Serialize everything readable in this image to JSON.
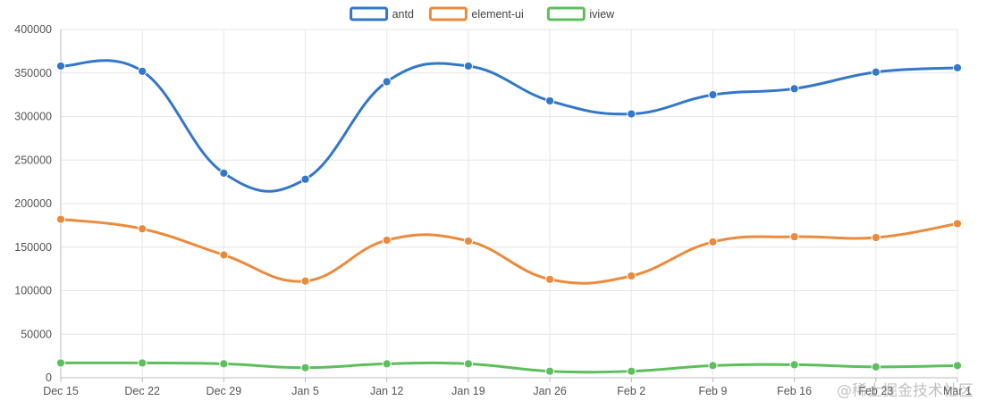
{
  "chart_data": {
    "type": "line",
    "categories": [
      "Dec 15",
      "Dec 22",
      "Dec 29",
      "Jan 5",
      "Jan 12",
      "Jan 19",
      "Jan 26",
      "Feb 2",
      "Feb 9",
      "Feb 16",
      "Feb 23",
      "Mar 1"
    ],
    "series": [
      {
        "name": "antd",
        "color": "#3277c9",
        "values": [
          358000,
          352000,
          235000,
          228000,
          340000,
          358000,
          318000,
          303000,
          325000,
          332000,
          351000,
          356000
        ]
      },
      {
        "name": "element-ui",
        "color": "#ec8a3b",
        "values": [
          182000,
          171000,
          141000,
          111000,
          158000,
          157000,
          113000,
          117000,
          156000,
          162000,
          161000,
          177000
        ]
      },
      {
        "name": "iview",
        "color": "#5cbf5c",
        "values": [
          17000,
          17000,
          16000,
          11500,
          16000,
          16000,
          7500,
          7500,
          14000,
          15000,
          12500,
          14000
        ]
      }
    ],
    "yticks": [
      "0",
      "50000",
      "100000",
      "150000",
      "200000",
      "250000",
      "300000",
      "350000",
      "400000"
    ],
    "ylim": [
      0,
      400000
    ],
    "grid": true,
    "legend_position": "top-center",
    "title": "",
    "xlabel": "",
    "ylabel": ""
  },
  "watermark": "@稀土掘金技术社区"
}
